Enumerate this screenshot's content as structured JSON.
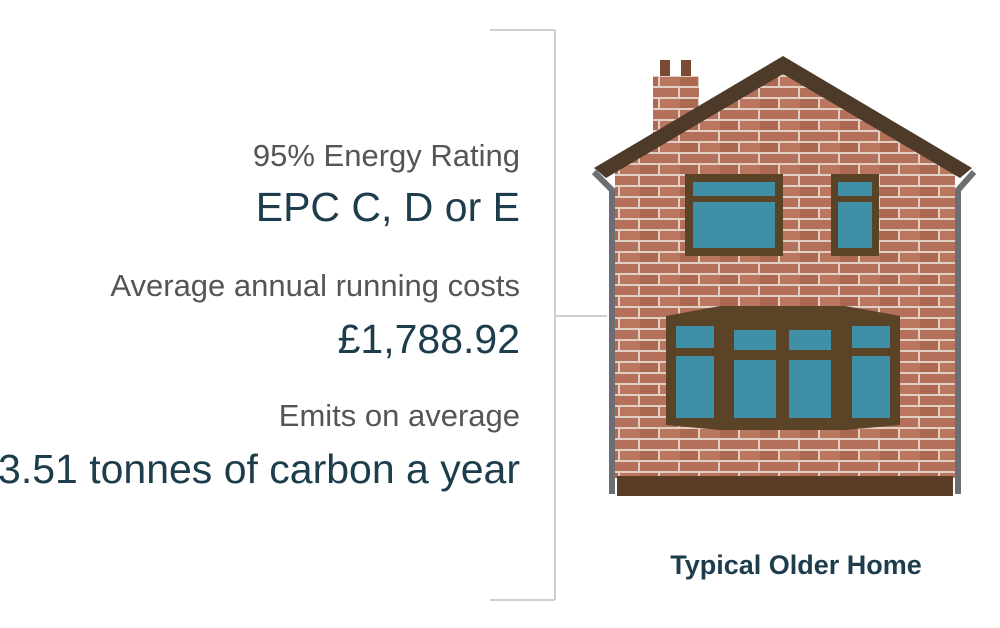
{
  "stats": [
    {
      "label": "95% Energy Rating",
      "value": "EPC C, D or E"
    },
    {
      "label": "Average annual running costs",
      "value": "£1,788.92"
    },
    {
      "label": "Emits on average",
      "value": "3.51 tonnes of carbon a year"
    }
  ],
  "caption": "Typical Older Home"
}
